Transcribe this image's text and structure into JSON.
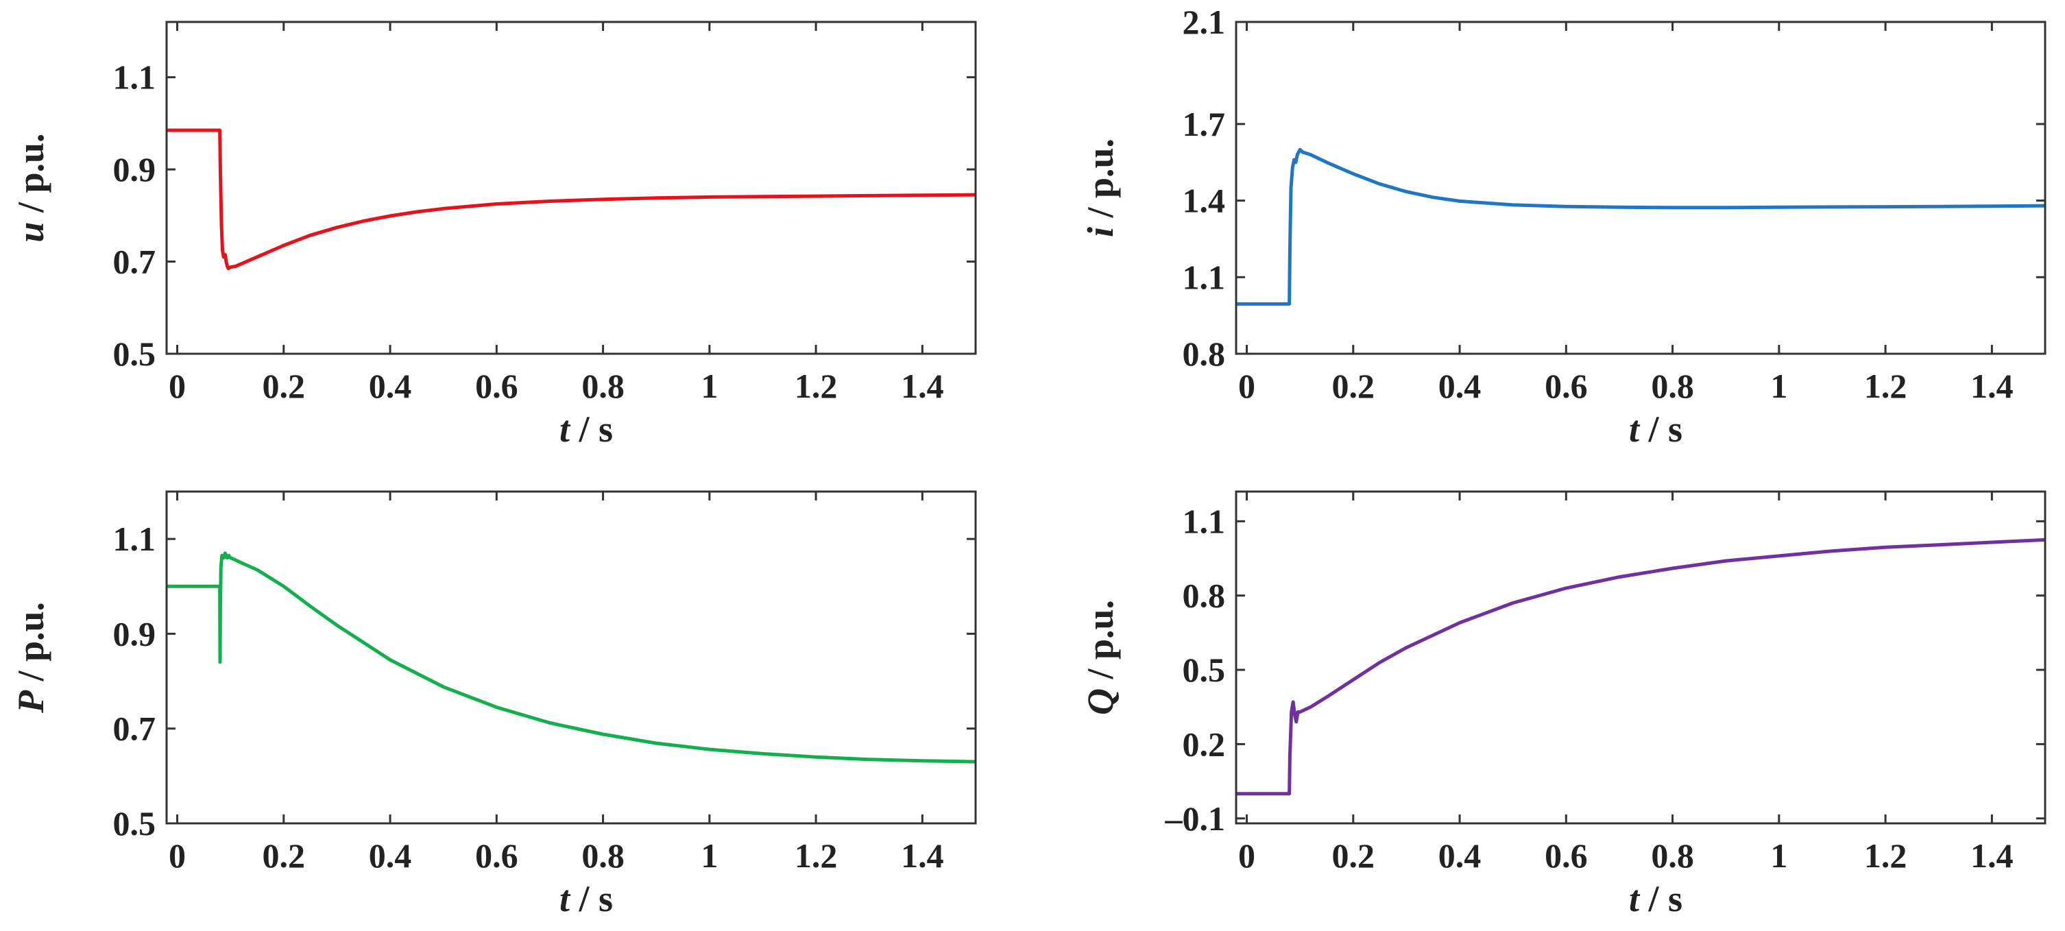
{
  "chart_data": [
    {
      "id": "u",
      "type": "line",
      "ylabel_var": "u",
      "ylabel_unit": " / p.u.",
      "xlabel_var": "t",
      "xlabel_unit": " / s",
      "xlim": [
        -0.02,
        1.5
      ],
      "ylim": [
        0.5,
        1.22
      ],
      "xticks": [
        0,
        0.2,
        0.4,
        0.6,
        0.8,
        1,
        1.2,
        1.4
      ],
      "xtick_labels": [
        "0",
        "0.2",
        "0.4",
        "0.6",
        "0.8",
        "1",
        "1.2",
        "1.4"
      ],
      "yticks": [
        0.5,
        0.7,
        0.9,
        1.1
      ],
      "ytick_labels": [
        "0.5",
        "0.7",
        "0.9",
        "1.1"
      ],
      "color": "#e8111a",
      "series": [
        {
          "name": "u",
          "x": [
            -0.02,
            0.08,
            0.081,
            0.083,
            0.085,
            0.087,
            0.09,
            0.092,
            0.094,
            0.096,
            0.1,
            0.11,
            0.13,
            0.15,
            0.2,
            0.25,
            0.3,
            0.35,
            0.4,
            0.45,
            0.5,
            0.6,
            0.7,
            0.8,
            0.9,
            1.0,
            1.1,
            1.2,
            1.3,
            1.4,
            1.5
          ],
          "y": [
            0.985,
            0.985,
            0.9,
            0.78,
            0.725,
            0.71,
            0.715,
            0.7,
            0.69,
            0.685,
            0.688,
            0.69,
            0.7,
            0.71,
            0.735,
            0.757,
            0.774,
            0.788,
            0.799,
            0.808,
            0.815,
            0.825,
            0.831,
            0.835,
            0.838,
            0.84,
            0.841,
            0.842,
            0.843,
            0.844,
            0.845
          ]
        }
      ]
    },
    {
      "id": "i",
      "type": "line",
      "ylabel_var": "i",
      "ylabel_unit": " / p.u.",
      "xlabel_var": "t",
      "xlabel_unit": " / s",
      "xlim": [
        -0.02,
        1.5
      ],
      "ylim": [
        0.8,
        2.1
      ],
      "xticks": [
        0,
        0.2,
        0.4,
        0.6,
        0.8,
        1,
        1.2,
        1.4
      ],
      "xtick_labels": [
        "0",
        "0.2",
        "0.4",
        "0.6",
        "0.8",
        "1",
        "1.2",
        "1.4"
      ],
      "yticks": [
        0.8,
        1.1,
        1.4,
        1.7,
        2.1
      ],
      "ytick_labels": [
        "0.8",
        "1.1",
        "1.4",
        "1.7",
        "2.1"
      ],
      "color": "#1f77c4",
      "series": [
        {
          "name": "i",
          "x": [
            -0.02,
            0.08,
            0.081,
            0.083,
            0.086,
            0.089,
            0.092,
            0.095,
            0.1,
            0.105,
            0.12,
            0.15,
            0.2,
            0.25,
            0.3,
            0.35,
            0.4,
            0.5,
            0.6,
            0.7,
            0.8,
            0.9,
            1.0,
            1.1,
            1.2,
            1.3,
            1.4,
            1.5
          ],
          "y": [
            0.995,
            0.995,
            1.2,
            1.45,
            1.53,
            1.56,
            1.55,
            1.58,
            1.6,
            1.59,
            1.58,
            1.55,
            1.505,
            1.465,
            1.435,
            1.413,
            1.398,
            1.383,
            1.377,
            1.374,
            1.373,
            1.373,
            1.374,
            1.375,
            1.376,
            1.377,
            1.378,
            1.38
          ]
        }
      ]
    },
    {
      "id": "P",
      "type": "line",
      "ylabel_var": "P",
      "ylabel_unit": " / p.u.",
      "xlabel_var": "t",
      "xlabel_unit": " / s",
      "xlim": [
        -0.02,
        1.5
      ],
      "ylim": [
        0.5,
        1.2
      ],
      "xticks": [
        0,
        0.2,
        0.4,
        0.6,
        0.8,
        1,
        1.2,
        1.4
      ],
      "xtick_labels": [
        "0",
        "0.2",
        "0.4",
        "0.6",
        "0.8",
        "1",
        "1.2",
        "1.4"
      ],
      "yticks": [
        0.5,
        0.7,
        0.9,
        1.1
      ],
      "ytick_labels": [
        "0.5",
        "0.7",
        "0.9",
        "1.1"
      ],
      "color": "#12b04c",
      "series": [
        {
          "name": "P",
          "x": [
            -0.02,
            0.08,
            0.0805,
            0.081,
            0.082,
            0.084,
            0.087,
            0.09,
            0.094,
            0.097,
            0.1,
            0.105,
            0.12,
            0.15,
            0.2,
            0.25,
            0.3,
            0.4,
            0.5,
            0.6,
            0.7,
            0.8,
            0.9,
            1.0,
            1.1,
            1.2,
            1.3,
            1.4,
            1.5
          ],
          "y": [
            1.0,
            1.0,
            0.84,
            0.95,
            1.04,
            1.065,
            1.06,
            1.07,
            1.06,
            1.065,
            1.06,
            1.058,
            1.05,
            1.035,
            1.0,
            0.958,
            0.918,
            0.845,
            0.788,
            0.745,
            0.712,
            0.688,
            0.669,
            0.656,
            0.647,
            0.64,
            0.635,
            0.632,
            0.63
          ]
        }
      ]
    },
    {
      "id": "Q",
      "type": "line",
      "ylabel_var": "Q",
      "ylabel_unit": " / p.u.",
      "xlabel_var": "t",
      "xlabel_unit": " / s",
      "xlim": [
        -0.02,
        1.5
      ],
      "ylim": [
        -0.12,
        1.22
      ],
      "xticks": [
        0,
        0.2,
        0.4,
        0.6,
        0.8,
        1,
        1.2,
        1.4
      ],
      "xtick_labels": [
        "0",
        "0.2",
        "0.4",
        "0.6",
        "0.8",
        "1",
        "1.2",
        "1.4"
      ],
      "yticks": [
        -0.1,
        0.2,
        0.5,
        0.8,
        1.1
      ],
      "ytick_labels": [
        "–0.1",
        "0.2",
        "0.5",
        "0.8",
        "1.1"
      ],
      "color": "#7030a0",
      "series": [
        {
          "name": "Q",
          "x": [
            -0.02,
            0.08,
            0.081,
            0.084,
            0.087,
            0.09,
            0.093,
            0.096,
            0.1,
            0.11,
            0.12,
            0.15,
            0.2,
            0.25,
            0.3,
            0.4,
            0.5,
            0.6,
            0.7,
            0.8,
            0.9,
            1.0,
            1.1,
            1.2,
            1.3,
            1.4,
            1.5
          ],
          "y": [
            0.0,
            0.0,
            0.15,
            0.33,
            0.37,
            0.32,
            0.29,
            0.33,
            0.33,
            0.34,
            0.35,
            0.39,
            0.46,
            0.53,
            0.59,
            0.69,
            0.77,
            0.83,
            0.875,
            0.91,
            0.94,
            0.96,
            0.98,
            0.995,
            1.005,
            1.015,
            1.025
          ]
        }
      ]
    }
  ]
}
